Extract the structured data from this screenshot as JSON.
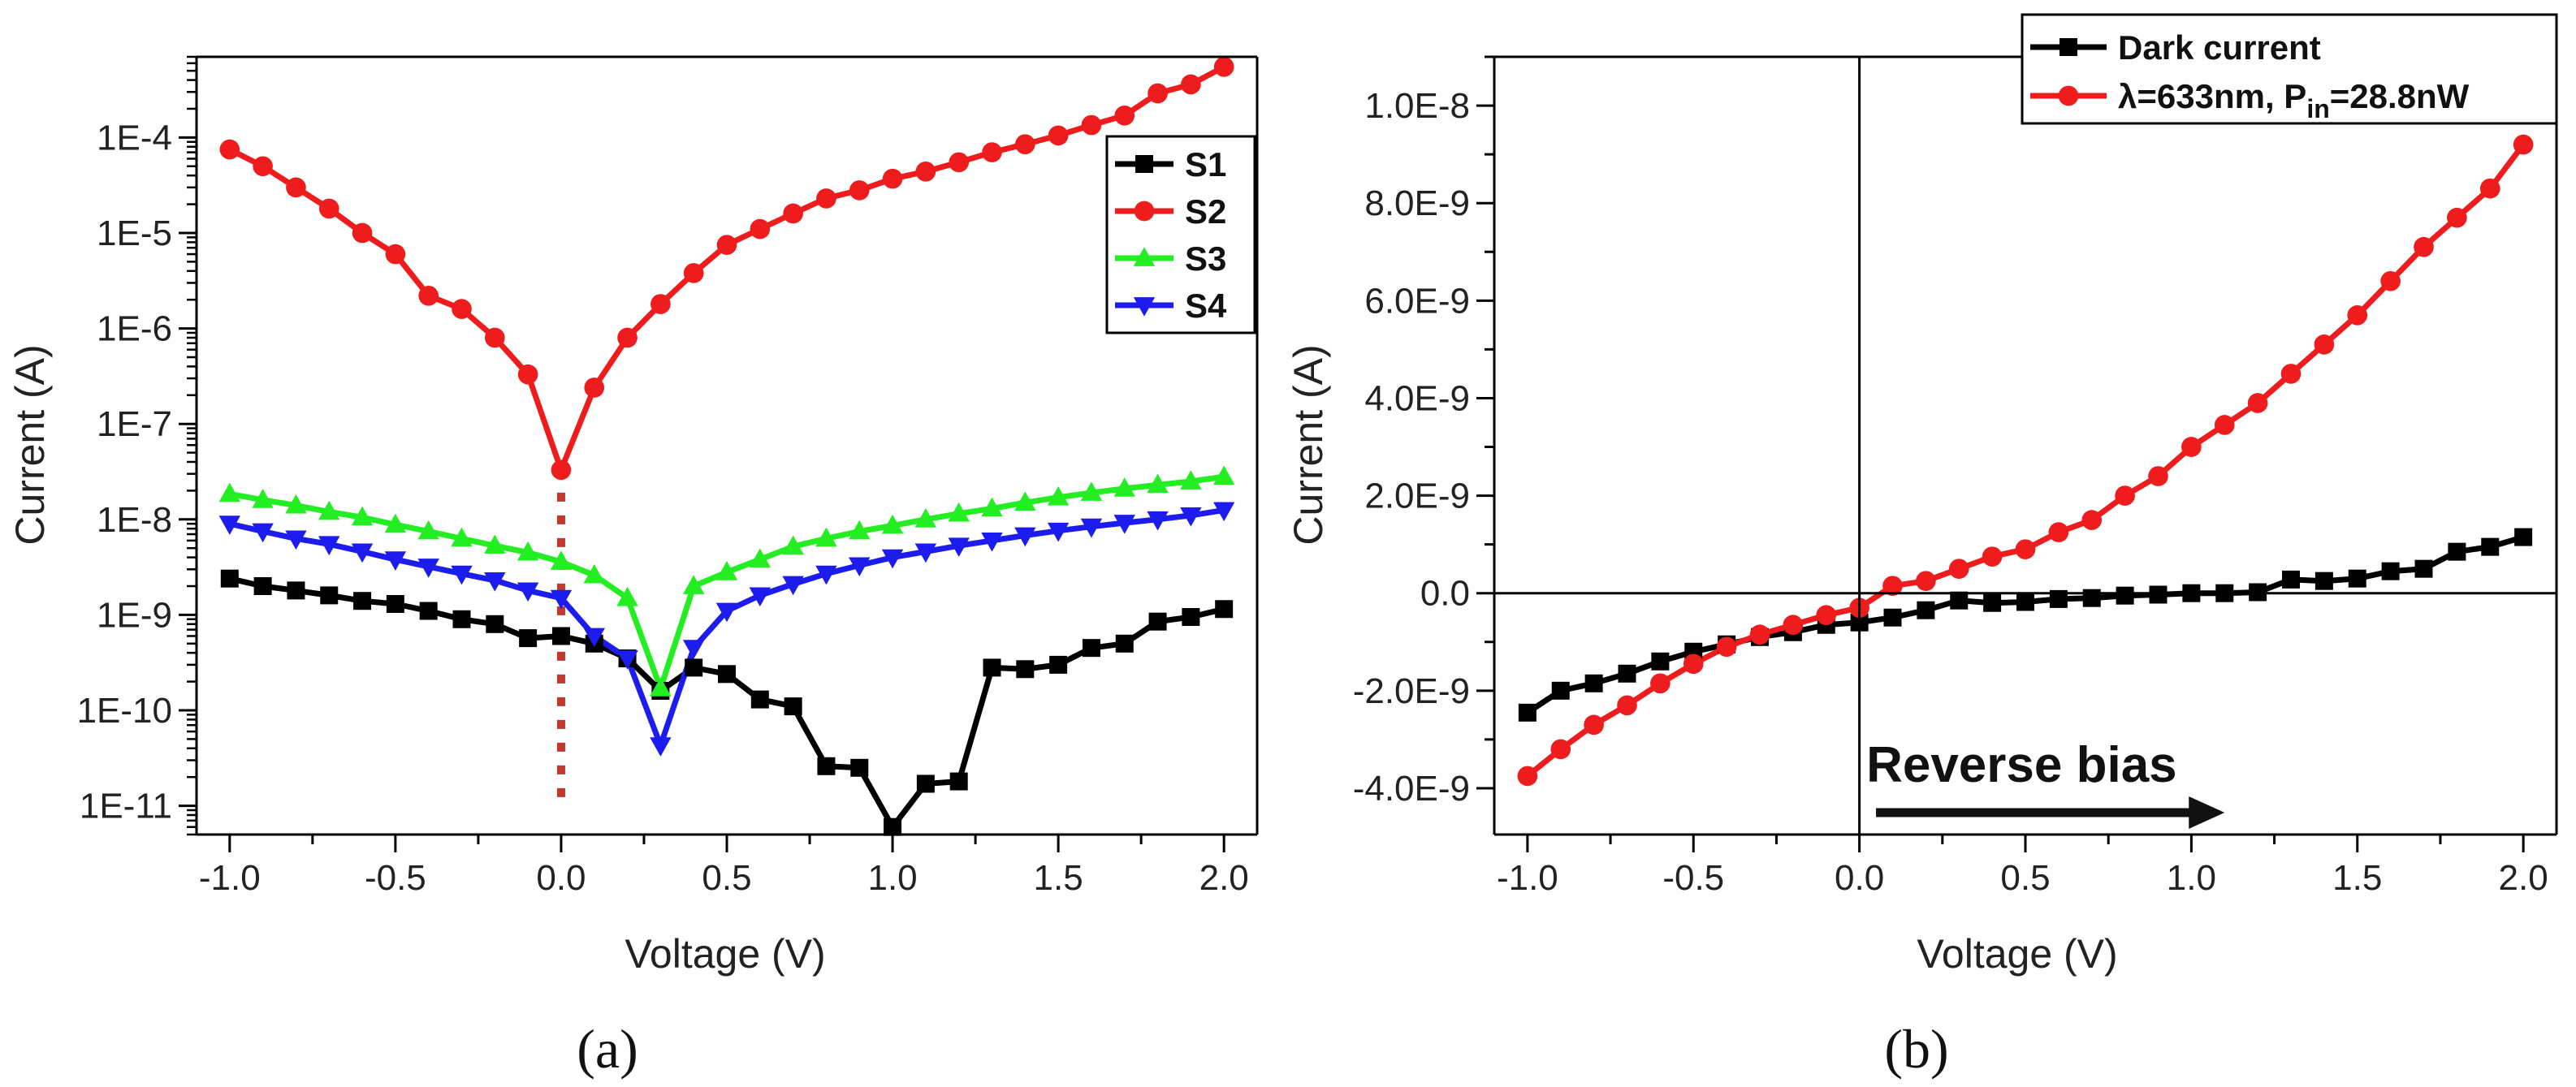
{
  "chart_data": [
    {
      "panel_label": "(a)",
      "type": "line",
      "xlabel": "Voltage (V)",
      "ylabel": "Current (A)",
      "xlim": [
        -1.1,
        2.1
      ],
      "ylim": [
        5e-12,
        0.0007
      ],
      "y_scale": "log",
      "grid": false,
      "legend_position": "top-right",
      "x_ticks": [
        -1.0,
        -0.5,
        0.0,
        0.5,
        1.0,
        1.5,
        2.0
      ],
      "x_tick_labels": [
        "-1.0",
        "-0.5",
        "0.0",
        "0.5",
        "1.0",
        "1.5",
        "2.0"
      ],
      "y_ticks": [
        1e-11,
        1e-10,
        1e-09,
        1e-08,
        1e-07,
        1e-06,
        1e-05,
        0.0001
      ],
      "y_tick_labels": [
        "1E-11",
        "1E-10",
        "1E-9",
        "1E-8",
        "1E-7",
        "1E-6",
        "1E-5",
        "1E-4"
      ],
      "annotation": {
        "type": "vertical-dotted-line",
        "x": 0.0,
        "color": "#c0392b"
      },
      "x": [
        -1.0,
        -0.9,
        -0.8,
        -0.7,
        -0.6,
        -0.5,
        -0.4,
        -0.3,
        -0.2,
        -0.1,
        0.0,
        0.1,
        0.2,
        0.3,
        0.4,
        0.5,
        0.6,
        0.7,
        0.8,
        0.9,
        1.0,
        1.1,
        1.2,
        1.3,
        1.4,
        1.5,
        1.6,
        1.7,
        1.8,
        1.9,
        2.0
      ],
      "series": [
        {
          "name": "S1",
          "color": "#000000",
          "marker": "square",
          "values": [
            2.4e-09,
            2e-09,
            1.8e-09,
            1.6e-09,
            1.4e-09,
            1.3e-09,
            1.1e-09,
            9e-10,
            8e-10,
            5.7e-10,
            6e-10,
            5e-10,
            3.5e-10,
            1.6e-10,
            2.8e-10,
            2.4e-10,
            1.3e-10,
            1.1e-10,
            2.6e-11,
            2.5e-11,
            6e-12,
            1.7e-11,
            1.8e-11,
            2.8e-10,
            2.7e-10,
            3e-10,
            4.5e-10,
            5e-10,
            8.5e-10,
            9.5e-10,
            1.15e-09
          ]
        },
        {
          "name": "S2",
          "color": "#ee1c1c",
          "marker": "circle",
          "values": [
            7.5e-05,
            5e-05,
            3e-05,
            1.8e-05,
            1e-05,
            6e-06,
            2.2e-06,
            1.6e-06,
            8e-07,
            3.3e-07,
            3.3e-08,
            2.4e-07,
            8e-07,
            1.8e-06,
            3.8e-06,
            7.5e-06,
            1.1e-05,
            1.6e-05,
            2.3e-05,
            2.8e-05,
            3.7e-05,
            4.4e-05,
            5.5e-05,
            7e-05,
            8.5e-05,
            0.000105,
            0.000135,
            0.00017,
            0.00029,
            0.00036,
            0.00055
          ]
        },
        {
          "name": "S3",
          "color": "#22ee22",
          "marker": "triangle-up",
          "values": [
            1.85e-08,
            1.6e-08,
            1.4e-08,
            1.2e-08,
            1.05e-08,
            8.8e-09,
            7.5e-09,
            6.3e-09,
            5.3e-09,
            4.5e-09,
            3.6e-09,
            2.6e-09,
            1.5e-09,
            1.7e-10,
            2e-09,
            2.8e-09,
            3.8e-09,
            5.2e-09,
            6.3e-09,
            7.5e-09,
            8.6e-09,
            1e-08,
            1.15e-08,
            1.3e-08,
            1.5e-08,
            1.7e-08,
            1.9e-08,
            2.1e-08,
            2.3e-08,
            2.5e-08,
            2.8e-08
          ]
        },
        {
          "name": "S4",
          "color": "#1c1cee",
          "marker": "triangle-down",
          "values": [
            9e-09,
            7.5e-09,
            6.3e-09,
            5.5e-09,
            4.6e-09,
            3.8e-09,
            3.2e-09,
            2.7e-09,
            2.3e-09,
            1.8e-09,
            1.5e-09,
            6e-10,
            3.5e-10,
            4.3e-11,
            4.5e-10,
            1.1e-09,
            1.6e-09,
            2.1e-09,
            2.7e-09,
            3.3e-09,
            4e-09,
            4.6e-09,
            5.3e-09,
            6e-09,
            6.8e-09,
            7.6e-09,
            8.4e-09,
            9.2e-09,
            1e-08,
            1.1e-08,
            1.25e-08
          ]
        }
      ]
    },
    {
      "panel_label": "(b)",
      "type": "line",
      "xlabel": "Voltage (V)",
      "ylabel": "Current (A)",
      "xlim": [
        -1.1,
        2.1
      ],
      "ylim": [
        -4.95e-09,
        1.1e-08
      ],
      "y_scale": "linear",
      "grid": false,
      "legend_position": "top-right",
      "zero_lines": true,
      "x_ticks": [
        -1.0,
        -0.5,
        0.0,
        0.5,
        1.0,
        1.5,
        2.0
      ],
      "x_tick_labels": [
        "-1.0",
        "-0.5",
        "0.0",
        "0.5",
        "1.0",
        "1.5",
        "2.0"
      ],
      "y_ticks": [
        -4e-09,
        -2e-09,
        0,
        2e-09,
        4e-09,
        6e-09,
        8e-09,
        1e-08
      ],
      "y_tick_labels": [
        "-4.0E-9",
        "-2.0E-9",
        "0.0",
        "2.0E-9",
        "4.0E-9",
        "6.0E-9",
        "8.0E-9",
        "1.0E-8"
      ],
      "annotation": {
        "text": "Reverse bias",
        "arrow_from_x": 0.05,
        "arrow_to_x": 1.1,
        "arrow_y": -4.5e-09,
        "text_y": -3.5e-09
      },
      "x": [
        -1.0,
        -0.9,
        -0.8,
        -0.7,
        -0.6,
        -0.5,
        -0.4,
        -0.3,
        -0.2,
        -0.1,
        0.0,
        0.1,
        0.2,
        0.3,
        0.4,
        0.5,
        0.6,
        0.7,
        0.8,
        0.9,
        1.0,
        1.1,
        1.2,
        1.3,
        1.4,
        1.5,
        1.6,
        1.7,
        1.8,
        1.9,
        2.0
      ],
      "series": [
        {
          "name": "Dark current",
          "color": "#000000",
          "marker": "square",
          "values": [
            -2.45e-09,
            -2e-09,
            -1.85e-09,
            -1.65e-09,
            -1.4e-09,
            -1.2e-09,
            -1.05e-09,
            -9e-10,
            -8e-10,
            -6.5e-10,
            -6e-10,
            -5e-10,
            -3.5e-10,
            -1.5e-10,
            -2e-10,
            -1.8e-10,
            -1.2e-10,
            -1e-10,
            -5e-11,
            -3e-11,
            0.0,
            0.0,
            2e-11,
            2.8e-10,
            2.5e-10,
            3e-10,
            4.5e-10,
            5e-10,
            8.5e-10,
            9.5e-10,
            1.15e-09
          ]
        },
        {
          "name_text": "λ=633nm, P",
          "name_sub": "in",
          "name_tail": "=28.8nW",
          "color": "#ee1c1c",
          "marker": "circle",
          "values": [
            -3.75e-09,
            -3.2e-09,
            -2.7e-09,
            -2.3e-09,
            -1.85e-09,
            -1.45e-09,
            -1.1e-09,
            -8.5e-10,
            -6.5e-10,
            -4.5e-10,
            -3e-10,
            1.5e-10,
            2.5e-10,
            5e-10,
            7.5e-10,
            9e-10,
            1.25e-09,
            1.5e-09,
            2e-09,
            2.4e-09,
            3e-09,
            3.45e-09,
            3.9e-09,
            4.5e-09,
            5.1e-09,
            5.7e-09,
            6.4e-09,
            7.1e-09,
            7.7e-09,
            8.3e-09,
            9.2e-09
          ]
        }
      ]
    }
  ]
}
